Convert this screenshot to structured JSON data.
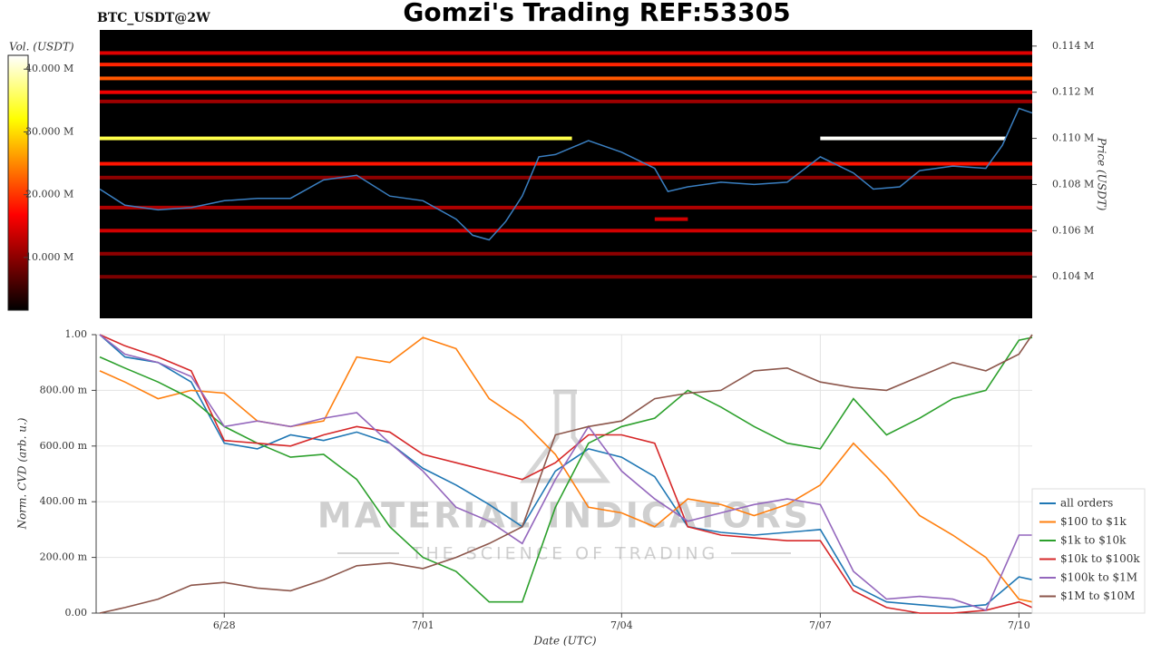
{
  "title": "Gomzi's Trading REF:53305",
  "symbol": "BTC_USDT@2W",
  "watermark": {
    "brand": "MATERIAL INDICATORS",
    "tagline": "THE SCIENCE OF TRADING"
  },
  "chart_data": [
    {
      "type": "heatmap",
      "ylabel": "Price (USDT)",
      "colorbar_label": "Vol. (USDT)",
      "xlim": [
        0.12,
        14.2
      ],
      "ylim": [
        0.1022,
        0.1147
      ],
      "yticks": [
        {
          "value": 0.104,
          "label": "0.104 M"
        },
        {
          "value": 0.106,
          "label": "0.106 M"
        },
        {
          "value": 0.108,
          "label": "0.108 M"
        },
        {
          "value": 0.11,
          "label": "0.110 M"
        },
        {
          "value": 0.112,
          "label": "0.112 M"
        },
        {
          "value": 0.114,
          "label": "0.114 M"
        }
      ],
      "clim": [
        1.6,
        42.2
      ],
      "cticks": [
        {
          "value": 10,
          "label": "10.000 M"
        },
        {
          "value": 20,
          "label": "20.000 M"
        },
        {
          "value": 30,
          "label": "30.000 M"
        },
        {
          "value": 40,
          "label": "40.000 M"
        }
      ],
      "bands": [
        {
          "price": 0.1137,
          "from": 0.12,
          "to": 14.2,
          "volume": 15
        },
        {
          "price": 0.1132,
          "from": 0.12,
          "to": 14.2,
          "volume": 19
        },
        {
          "price": 0.1126,
          "from": 0.12,
          "to": 14.2,
          "volume": 22
        },
        {
          "price": 0.112,
          "from": 0.12,
          "to": 14.2,
          "volume": 16
        },
        {
          "price": 0.1116,
          "from": 0.12,
          "to": 14.2,
          "volume": 11
        },
        {
          "price": 0.11,
          "from": 0.12,
          "to": 7.25,
          "volume": 35
        },
        {
          "price": 0.11,
          "from": 11,
          "to": 13.8,
          "volume": 42
        },
        {
          "price": 0.1089,
          "from": 0.12,
          "to": 14.2,
          "volume": 18
        },
        {
          "price": 0.1083,
          "from": 0.12,
          "to": 14.2,
          "volume": 10
        },
        {
          "price": 0.107,
          "from": 0.12,
          "to": 14.2,
          "volume": 12
        },
        {
          "price": 0.1065,
          "from": 8.5,
          "to": 9,
          "volume": 14
        },
        {
          "price": 0.106,
          "from": 0.12,
          "to": 14.2,
          "volume": 14
        },
        {
          "price": 0.105,
          "from": 0.12,
          "to": 14.2,
          "volume": 10
        },
        {
          "price": 0.104,
          "from": 0.12,
          "to": 14.2,
          "volume": 9
        }
      ],
      "color": "#3a7fc1",
      "x": [
        0.12,
        0.5,
        1,
        1.5,
        2,
        2.5,
        3,
        3.5,
        4,
        4.5,
        5,
        5.5,
        5.75,
        6,
        6.25,
        6.5,
        6.75,
        7,
        7.5,
        8,
        8.5,
        8.7,
        9,
        9.5,
        10,
        10.5,
        11,
        11.5,
        11.8,
        12.2,
        12.5,
        13,
        13.5,
        13.75,
        14,
        14.2
      ],
      "values": [
        0.1078,
        0.1071,
        0.1069,
        0.107,
        0.1073,
        0.1074,
        0.1074,
        0.1082,
        0.1084,
        0.1075,
        0.1073,
        0.1065,
        0.1058,
        0.1056,
        0.1064,
        0.1075,
        0.1092,
        0.1093,
        0.1099,
        0.1094,
        0.1087,
        0.1077,
        0.1079,
        0.1081,
        0.108,
        0.1081,
        0.1092,
        0.1085,
        0.1078,
        0.1079,
        0.1086,
        0.1088,
        0.1087,
        0.1097,
        0.1113,
        0.1111
      ]
    },
    {
      "type": "line",
      "xlabel": "Date (UTC)",
      "ylabel": "Norm. CVD (arb. u.)",
      "grid": true,
      "legend": "lower right",
      "xlim": [
        0.12,
        14.2
      ],
      "ylim": [
        0,
        1
      ],
      "xticks": [
        {
          "value": 2,
          "label": "6/28"
        },
        {
          "value": 5,
          "label": "7/01"
        },
        {
          "value": 8,
          "label": "7/04"
        },
        {
          "value": 11,
          "label": "7/07"
        },
        {
          "value": 14,
          "label": "7/10"
        }
      ],
      "yticks": [
        {
          "value": 0,
          "label": "0.00"
        },
        {
          "value": 0.2,
          "label": "200.00 m"
        },
        {
          "value": 0.4,
          "label": "400.00 m"
        },
        {
          "value": 0.6,
          "label": "600.00 m"
        },
        {
          "value": 0.8,
          "label": "800.00 m"
        },
        {
          "value": 1,
          "label": "1.00"
        }
      ],
      "x": [
        0.12,
        0.5,
        1,
        1.5,
        2,
        2.5,
        3,
        3.5,
        4,
        4.5,
        5,
        5.5,
        6,
        6.5,
        7,
        7.5,
        8,
        8.5,
        9,
        9.5,
        10,
        10.5,
        11,
        11.5,
        12,
        12.5,
        13,
        13.5,
        14,
        14.2
      ],
      "series": [
        {
          "name": "all orders",
          "color": "#1f77b4",
          "values": [
            1.0,
            0.92,
            0.9,
            0.83,
            0.61,
            0.59,
            0.64,
            0.62,
            0.65,
            0.61,
            0.52,
            0.46,
            0.39,
            0.31,
            0.51,
            0.59,
            0.56,
            0.49,
            0.31,
            0.29,
            0.28,
            0.29,
            0.3,
            0.1,
            0.04,
            0.03,
            0.02,
            0.03,
            0.13,
            0.12
          ]
        },
        {
          "name": "$100 to $1k",
          "color": "#ff7f0e",
          "values": [
            0.87,
            0.83,
            0.77,
            0.8,
            0.79,
            0.69,
            0.67,
            0.69,
            0.92,
            0.9,
            0.99,
            0.95,
            0.77,
            0.69,
            0.57,
            0.38,
            0.36,
            0.31,
            0.41,
            0.39,
            0.35,
            0.39,
            0.46,
            0.61,
            0.49,
            0.35,
            0.28,
            0.2,
            0.05,
            0.04
          ]
        },
        {
          "name": "$1k to $10k",
          "color": "#2ca02c",
          "values": [
            0.92,
            0.88,
            0.83,
            0.77,
            0.67,
            0.61,
            0.56,
            0.57,
            0.48,
            0.31,
            0.2,
            0.15,
            0.04,
            0.04,
            0.38,
            0.61,
            0.67,
            0.7,
            0.8,
            0.74,
            0.67,
            0.61,
            0.59,
            0.77,
            0.64,
            0.7,
            0.77,
            0.8,
            0.98,
            0.99
          ]
        },
        {
          "name": "$10k to $100k",
          "color": "#d62728",
          "values": [
            1.0,
            0.96,
            0.92,
            0.87,
            0.62,
            0.61,
            0.6,
            0.64,
            0.67,
            0.65,
            0.57,
            0.54,
            0.51,
            0.48,
            0.54,
            0.64,
            0.64,
            0.61,
            0.31,
            0.28,
            0.27,
            0.26,
            0.26,
            0.08,
            0.02,
            0.0,
            0.0,
            0.01,
            0.04,
            0.02
          ]
        },
        {
          "name": "$100k to $1M",
          "color": "#9467bd",
          "values": [
            1.0,
            0.93,
            0.9,
            0.85,
            0.67,
            0.69,
            0.67,
            0.7,
            0.72,
            0.61,
            0.51,
            0.38,
            0.33,
            0.25,
            0.48,
            0.67,
            0.51,
            0.41,
            0.33,
            0.36,
            0.39,
            0.41,
            0.39,
            0.15,
            0.05,
            0.06,
            0.05,
            0.01,
            0.28,
            0.28
          ]
        },
        {
          "name": "$1M to $10M",
          "color": "#8c564b",
          "values": [
            0.0,
            0.02,
            0.05,
            0.1,
            0.11,
            0.09,
            0.08,
            0.12,
            0.17,
            0.18,
            0.16,
            0.2,
            0.25,
            0.31,
            0.64,
            0.67,
            0.69,
            0.77,
            0.79,
            0.8,
            0.87,
            0.88,
            0.83,
            0.81,
            0.8,
            0.85,
            0.9,
            0.87,
            0.93,
            1.0
          ]
        }
      ]
    }
  ]
}
